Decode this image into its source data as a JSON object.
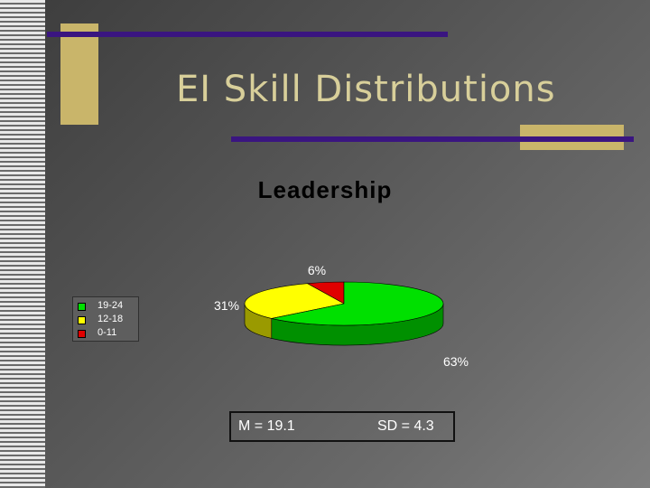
{
  "slide": {
    "title": "EI Skill Distributions"
  },
  "stats": {
    "mean_label": "M = 19.1",
    "sd_label": "SD = 4.3"
  },
  "colors": {
    "green": "#00e000",
    "green_side": "#009000",
    "yellow": "#ffff00",
    "yellow_side": "#9a9a00",
    "red": "#e00000",
    "red_side": "#900000"
  },
  "chart_data": {
    "type": "pie",
    "title": "Leadership",
    "legend_position": "left",
    "categories": [
      "19-24",
      "12-18",
      "0-11"
    ],
    "values": [
      63,
      31,
      6
    ],
    "labels": [
      "63%",
      "31%",
      "6%"
    ],
    "colors": [
      "#00e000",
      "#ffff00",
      "#e00000"
    ],
    "side_colors": [
      "#009000",
      "#9a9a00",
      "#900000"
    ]
  }
}
